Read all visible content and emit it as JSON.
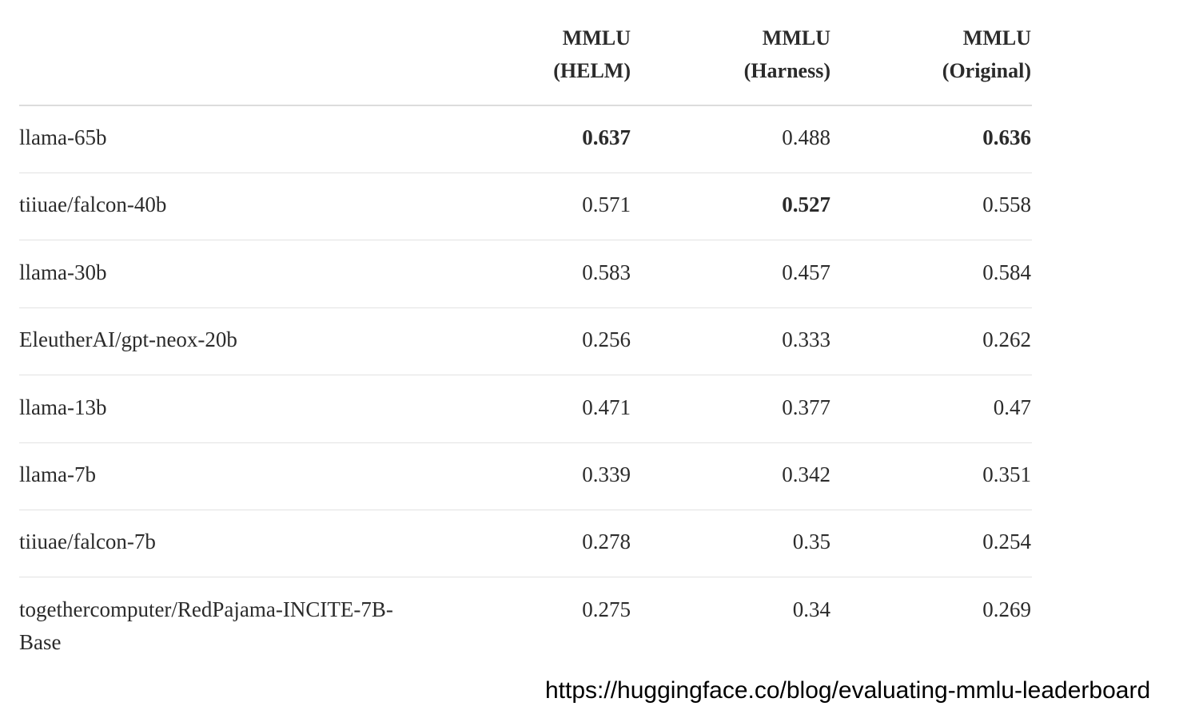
{
  "table": {
    "columns": [
      [
        "MMLU",
        "(HELM)"
      ],
      [
        "MMLU",
        "(Harness)"
      ],
      [
        "MMLU",
        "(Original)"
      ]
    ],
    "rows": [
      {
        "model": "llama-65b",
        "values": [
          0.637,
          0.488,
          0.636
        ]
      },
      {
        "model": "tiiuae/falcon-40b",
        "values": [
          0.571,
          0.527,
          0.558
        ]
      },
      {
        "model": "llama-30b",
        "values": [
          0.583,
          0.457,
          0.584
        ]
      },
      {
        "model": "EleutherAI/gpt-neox-20b",
        "values": [
          0.256,
          0.333,
          0.262
        ]
      },
      {
        "model": "llama-13b",
        "values": [
          0.471,
          0.377,
          0.47
        ]
      },
      {
        "model": "llama-7b",
        "values": [
          0.339,
          0.342,
          0.351
        ]
      },
      {
        "model": "tiiuae/falcon-7b",
        "values": [
          0.278,
          0.35,
          0.254
        ]
      },
      {
        "model": "togethercomputer/RedPajama-INCITE-7B-Base",
        "values": [
          0.275,
          0.34,
          0.269
        ]
      }
    ],
    "bold_cells": [
      [
        0,
        0
      ],
      [
        0,
        2
      ],
      [
        1,
        1
      ]
    ]
  },
  "footer": {
    "url": "https://huggingface.co/blog/evaluating-mmlu-leaderboard"
  }
}
